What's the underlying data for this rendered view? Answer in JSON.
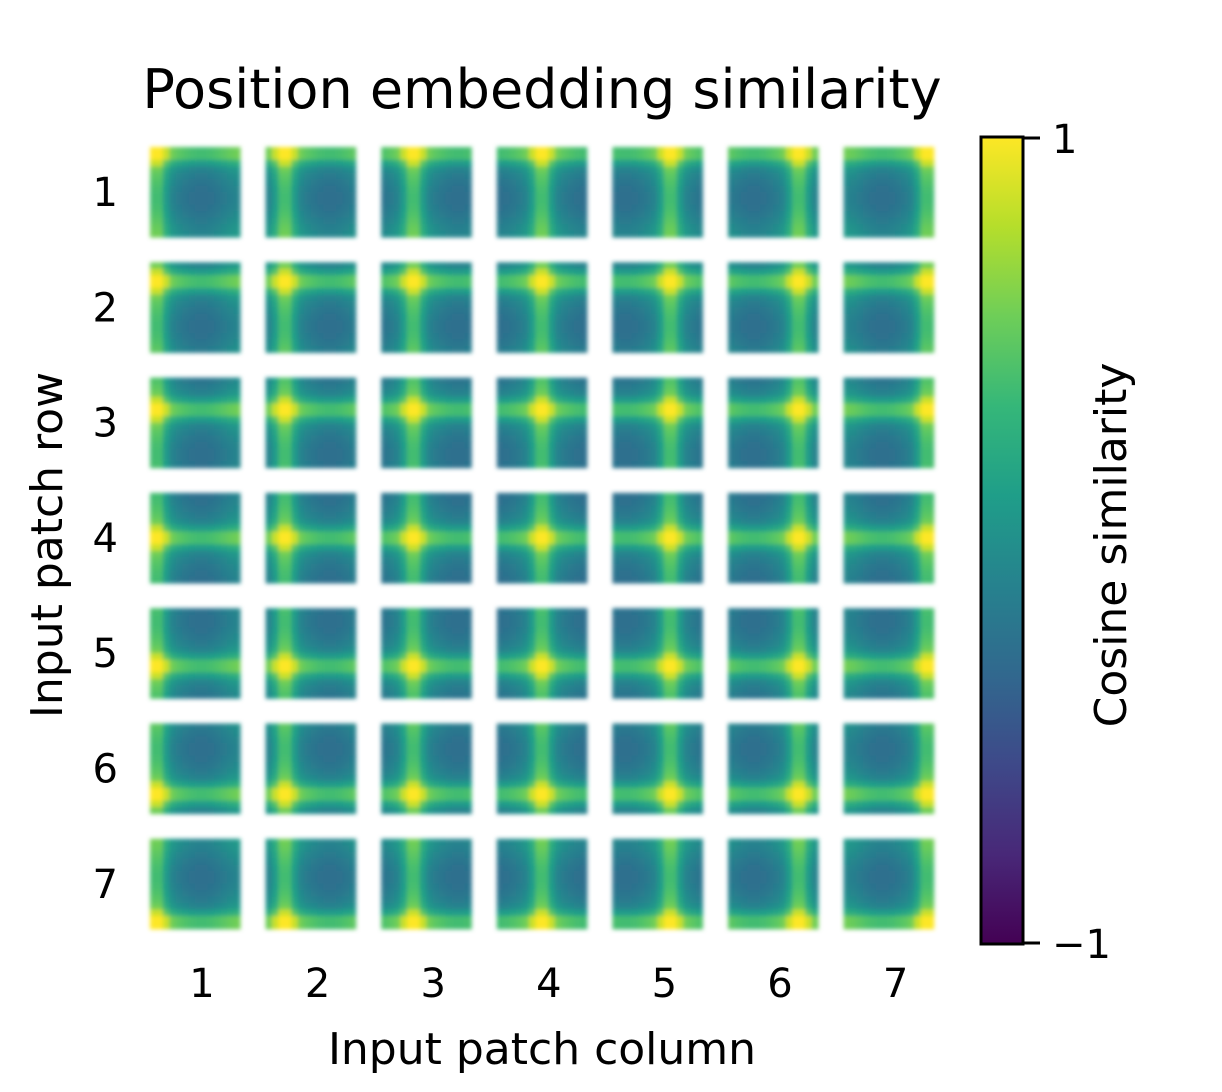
{
  "chart_data": {
    "type": "heatmap",
    "title": "Position embedding similarity",
    "xlabel": "Input patch column",
    "ylabel": "Input patch row",
    "rows": [
      "1",
      "2",
      "3",
      "4",
      "5",
      "6",
      "7"
    ],
    "columns": [
      "1",
      "2",
      "3",
      "4",
      "5",
      "6",
      "7"
    ],
    "cell_grid": [
      14,
      14
    ],
    "colormap": "viridis",
    "colorbar": {
      "label": "Cosine similarity",
      "min": -1,
      "max": 1,
      "tick_labels": [
        "1",
        "−1"
      ]
    },
    "description": "Each tile (row r, column c) is a heatmap of the cosine similarity between the position embedding of patch (r, c) and every other patch position; the bright yellow peak sits at the tile's own location, with green horizontal and vertical bands along the same row and column.",
    "colors": {
      "cmap_stops": [
        "#440154",
        "#482878",
        "#3e4989",
        "#31688e",
        "#26828e",
        "#1f9e89",
        "#35b779",
        "#6ece58",
        "#b5de2b",
        "#fde725"
      ]
    }
  }
}
